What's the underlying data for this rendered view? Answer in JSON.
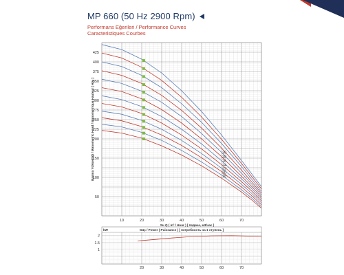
{
  "header": {
    "title": "MP 660 (50 Hz 2900 Rpm)",
    "subtitles": [
      "Performans Eğerileri / Performance Curves",
      "Caracteristiques Courbes"
    ]
  },
  "chart_data": [
    {
      "type": "line",
      "xlabel": "Su Q ( m³ / Hour ) [ подача, м3/час ]",
      "ylabel": "Basma Yüksekliği / Manometric Head / Manometrique Hauteur [ H/м ]",
      "xlim": [
        0,
        80
      ],
      "ylim": [
        0,
        450
      ],
      "x_ticks": [
        10,
        20,
        30,
        40,
        50,
        60,
        70
      ],
      "y_ticks": [
        25,
        50,
        75,
        100,
        125,
        150,
        175,
        200,
        225,
        250,
        275,
        300,
        325,
        350,
        375,
        400,
        425
      ],
      "y_tick_labels": [
        "",
        "50",
        "",
        "100",
        "",
        "150",
        "",
        "200",
        "225",
        "250",
        "275",
        "300",
        "325",
        "350",
        "375",
        "400",
        "425"
      ],
      "x_tick_labels": [
        "10",
        "20",
        "30",
        "40",
        "50",
        "60",
        "70"
      ],
      "curve_labels": [
        "30",
        "28",
        "26",
        "24",
        "22",
        "20",
        "18"
      ],
      "stage_colors": [
        "#c0392b",
        "#5b7fb5"
      ],
      "marker_color": "#7dbb3c",
      "marker_x": 21,
      "series": [
        {
          "name": "",
          "shutoff": 222,
          "q": [
            0,
            10,
            20,
            30,
            40,
            50,
            60,
            70,
            75,
            80
          ],
          "h": [
            222,
            215,
            202,
            182,
            158,
            130,
            98,
            62,
            42,
            20
          ]
        },
        {
          "name": "",
          "shutoff": 238,
          "q": [
            0,
            10,
            20,
            30,
            40,
            50,
            60,
            70,
            75,
            80
          ],
          "h": [
            238,
            231,
            217,
            196,
            170,
            140,
            106,
            68,
            47,
            24
          ]
        },
        {
          "name": "18",
          "shutoff": 255,
          "q": [
            0,
            10,
            20,
            30,
            40,
            50,
            60,
            70,
            75,
            80
          ],
          "h": [
            255,
            247,
            232,
            210,
            183,
            151,
            115,
            75,
            53,
            29
          ]
        },
        {
          "name": "20",
          "shutoff": 272,
          "q": [
            0,
            10,
            20,
            30,
            40,
            50,
            60,
            70,
            75,
            80
          ],
          "h": [
            272,
            264,
            248,
            225,
            196,
            162,
            124,
            82,
            59,
            34
          ]
        },
        {
          "name": "22",
          "shutoff": 292,
          "q": [
            0,
            10,
            20,
            30,
            40,
            50,
            60,
            70,
            75,
            80
          ],
          "h": [
            292,
            283,
            266,
            241,
            210,
            174,
            133,
            89,
            65,
            39
          ]
        },
        {
          "name": "24",
          "shutoff": 312,
          "q": [
            0,
            10,
            20,
            30,
            40,
            50,
            60,
            70,
            75,
            80
          ],
          "h": [
            312,
            302,
            284,
            258,
            225,
            187,
            143,
            96,
            71,
            44
          ]
        },
        {
          "name": "26",
          "shutoff": 333,
          "q": [
            0,
            10,
            20,
            30,
            40,
            50,
            60,
            70,
            75,
            80
          ],
          "h": [
            333,
            323,
            304,
            276,
            241,
            200,
            154,
            103,
            77,
            49
          ]
        },
        {
          "name": "28",
          "shutoff": 355,
          "q": [
            0,
            10,
            20,
            30,
            40,
            50,
            60,
            70,
            75,
            80
          ],
          "h": [
            355,
            344,
            324,
            295,
            258,
            214,
            165,
            111,
            83,
            54
          ]
        },
        {
          "name": "30",
          "shutoff": 377,
          "q": [
            0,
            10,
            20,
            30,
            40,
            50,
            60,
            70,
            75,
            80
          ],
          "h": [
            377,
            365,
            344,
            313,
            274,
            228,
            176,
            119,
            89,
            59
          ]
        },
        {
          "name": "",
          "shutoff": 400,
          "q": [
            0,
            10,
            20,
            30,
            40,
            50,
            60,
            70,
            75,
            80
          ],
          "h": [
            400,
            388,
            365,
            333,
            291,
            243,
            188,
            128,
            96,
            64
          ]
        },
        {
          "name": "",
          "shutoff": 423,
          "q": [
            0,
            10,
            20,
            30,
            40,
            50,
            60,
            70,
            75,
            80
          ],
          "h": [
            423,
            410,
            386,
            352,
            308,
            257,
            199,
            136,
            103,
            70
          ]
        },
        {
          "name": "",
          "shutoff": 445,
          "q": [
            0,
            10,
            20,
            30,
            40,
            50,
            60,
            70,
            75,
            80
          ],
          "h": [
            445,
            432,
            407,
            371,
            325,
            271,
            210,
            144,
            110,
            76
          ]
        }
      ]
    },
    {
      "type": "line",
      "title": "Güç / Power ( Puissance ) [ потребность на 1 ступень ]",
      "ylabel": "kW",
      "xlim": [
        0,
        80
      ],
      "ylim": [
        0,
        2.6
      ],
      "x_ticks": [
        10,
        20,
        30,
        40,
        50,
        60,
        70
      ],
      "x_tick_labels": [
        "",
        "20",
        "30",
        "40",
        "50",
        "60",
        "70"
      ],
      "y_ticks": [
        0.5,
        1,
        1.5,
        2
      ],
      "y_tick_labels": [
        "",
        "1",
        "1.5",
        "2"
      ],
      "series": [
        {
          "name": "",
          "q": [
            18,
            25,
            35,
            45,
            55,
            65,
            75,
            80
          ],
          "p": [
            1.62,
            1.7,
            1.82,
            1.92,
            1.97,
            1.98,
            1.95,
            1.9
          ]
        }
      ]
    }
  ]
}
